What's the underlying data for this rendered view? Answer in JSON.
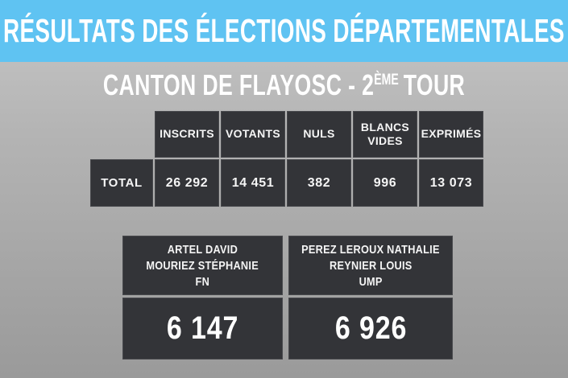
{
  "title": "RÉSULTATS DES ÉLECTIONS DÉPARTEMENTALES",
  "subtitle": {
    "prefix": "CANTON DE FLAYOSC - 2",
    "superscript": "ÈME",
    "suffix": "TOUR",
    "full_text": "CANTON DE FLAYOSC - 2ÈME TOUR"
  },
  "colors": {
    "banner_blue": "#5FC3F2",
    "box_dark": "#333438",
    "background_gray_top": "#C7C7C7",
    "background_gray_bottom": "#9A9A9A",
    "text_white": "#FFFFFF"
  },
  "table": {
    "row_label": "TOTAL",
    "columns": [
      "INSCRITS",
      "VOTANTS",
      "NULS",
      "BLANCS VIDES",
      "EXPRIMÉS"
    ],
    "values": [
      "26 292",
      "14 451",
      "382",
      "996",
      "13 073"
    ]
  },
  "candidates": [
    {
      "names": [
        "ARTEL DAVID",
        "MOURIEZ STÉPHANIE"
      ],
      "party": "FN",
      "votes": "6 147"
    },
    {
      "names": [
        "PEREZ LEROUX NATHALIE",
        "REYNIER LOUIS"
      ],
      "party": "UMP",
      "votes": "6 926"
    }
  ],
  "chart_data": {
    "type": "table",
    "title": "RÉSULTATS DES ÉLECTIONS DÉPARTEMENTALES",
    "subtitle": "CANTON DE FLAYOSC - 2ÈME TOUR",
    "columns": [
      "INSCRITS",
      "VOTANTS",
      "NULS",
      "BLANCS VIDES",
      "EXPRIMÉS"
    ],
    "rows": [
      {
        "label": "TOTAL",
        "values": [
          26292,
          14451,
          382,
          996,
          13073
        ]
      }
    ],
    "results": [
      {
        "candidates": "ARTEL DAVID, MOURIEZ STÉPHANIE",
        "party": "FN",
        "votes": 6147
      },
      {
        "candidates": "PEREZ LEROUX NATHALIE, REYNIER LOUIS",
        "party": "UMP",
        "votes": 6926
      }
    ]
  }
}
